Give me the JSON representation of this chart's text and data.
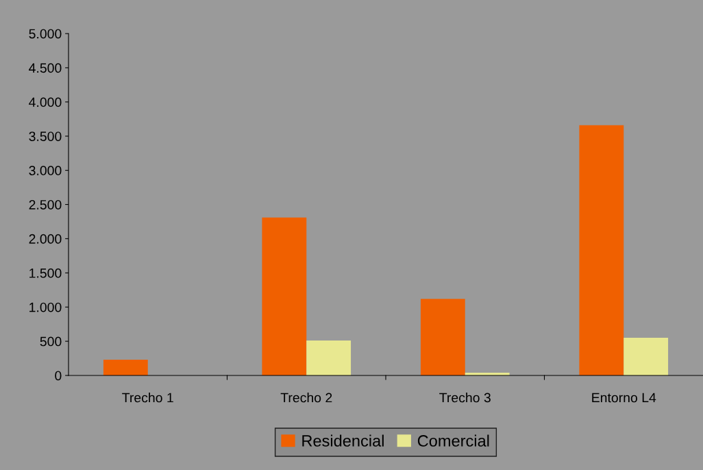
{
  "chart_data": {
    "type": "bar",
    "categories": [
      "Trecho 1",
      "Trecho 2",
      "Trecho 3",
      "Entorno L4"
    ],
    "series": [
      {
        "name": "Residencial",
        "color": "#f06000",
        "values": [
          230,
          2310,
          1120,
          3660
        ]
      },
      {
        "name": "Comercial",
        "color": "#e8e890",
        "values": [
          0,
          510,
          40,
          550
        ]
      }
    ],
    "ylim": [
      0,
      5000
    ],
    "yticks": [
      0,
      500,
      {
        "value": 1000,
        "label": "1.000"
      },
      {
        "value": 1500,
        "label": "1.500"
      },
      {
        "value": 2000,
        "label": "2.000"
      },
      {
        "value": 2500,
        "label": "2.500"
      },
      {
        "value": 3000,
        "label": "3.000"
      },
      {
        "value": 3500,
        "label": "3.500"
      },
      {
        "value": 4000,
        "label": "4.000"
      },
      {
        "value": 4500,
        "label": "4.500"
      },
      {
        "value": 5000,
        "label": "5.000"
      }
    ],
    "grid": false,
    "legend": "bottom"
  }
}
